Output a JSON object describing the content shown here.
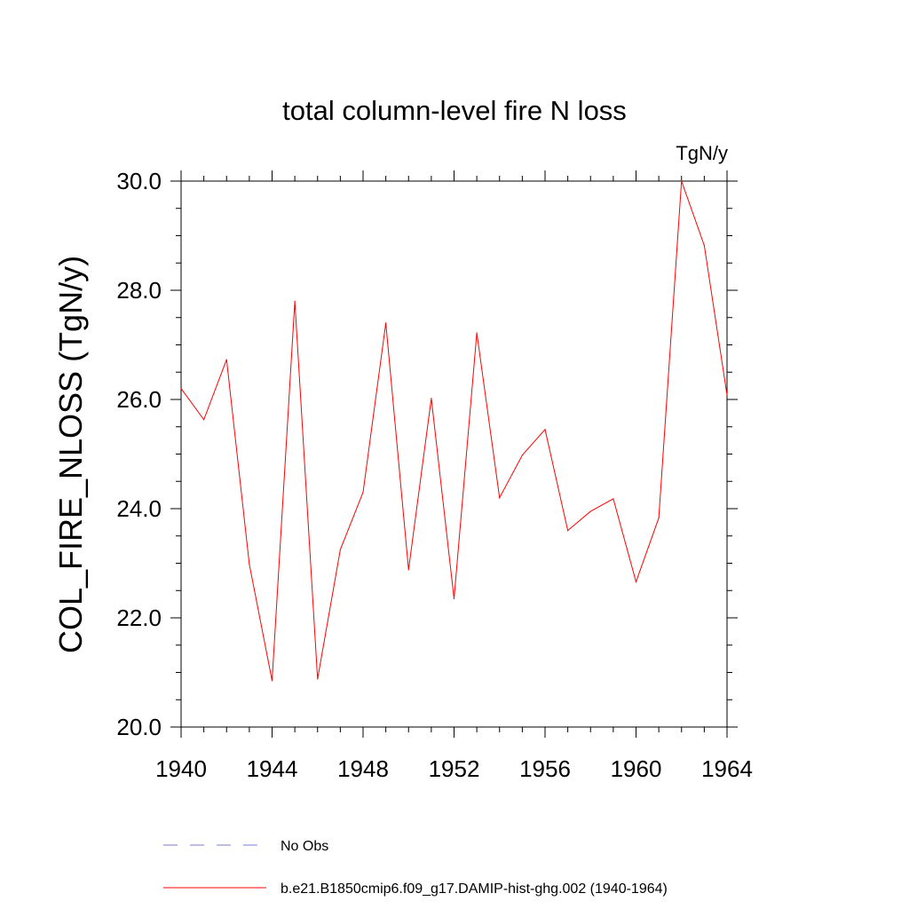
{
  "chart_data": {
    "type": "line",
    "title": "total column-level fire N loss",
    "units_label": "TgN/y",
    "ylabel": "COL_FIRE_NLOSS  (TgN/y)",
    "xlabel": "",
    "xlim": [
      1940,
      1964
    ],
    "ylim": [
      20.0,
      30.0
    ],
    "x_ticks": [
      1940,
      1944,
      1948,
      1952,
      1956,
      1960,
      1964
    ],
    "x_tick_labels": [
      "1940",
      "1944",
      "1948",
      "1952",
      "1956",
      "1960",
      "1964"
    ],
    "y_ticks": [
      20,
      22,
      24,
      26,
      28,
      30
    ],
    "y_tick_labels": [
      "20.0",
      "22.0",
      "24.0",
      "26.0",
      "28.0",
      "30.0"
    ],
    "grid": false,
    "legend_position": "bottom",
    "series": [
      {
        "name": "No Obs",
        "color": "#7b7bd6",
        "style": "dashed",
        "x": [],
        "values": []
      },
      {
        "name": "b.e21.B1850cmip6.f09_g17.DAMIP-hist-ghg.002 (1940-1964)",
        "color": "#ff0000",
        "style": "solid",
        "x": [
          1940,
          1941,
          1942,
          1943,
          1944,
          1945,
          1946,
          1947,
          1948,
          1949,
          1950,
          1951,
          1952,
          1953,
          1954,
          1955,
          1956,
          1957,
          1958,
          1959,
          1960,
          1961,
          1962,
          1963,
          1964
        ],
        "values": [
          26.2,
          25.63,
          26.73,
          22.98,
          20.85,
          27.8,
          20.88,
          23.25,
          24.3,
          27.4,
          22.88,
          26.02,
          22.35,
          27.22,
          24.2,
          24.98,
          25.45,
          23.6,
          23.95,
          24.18,
          22.66,
          23.83,
          30.0,
          28.82,
          26.08
        ]
      }
    ]
  }
}
